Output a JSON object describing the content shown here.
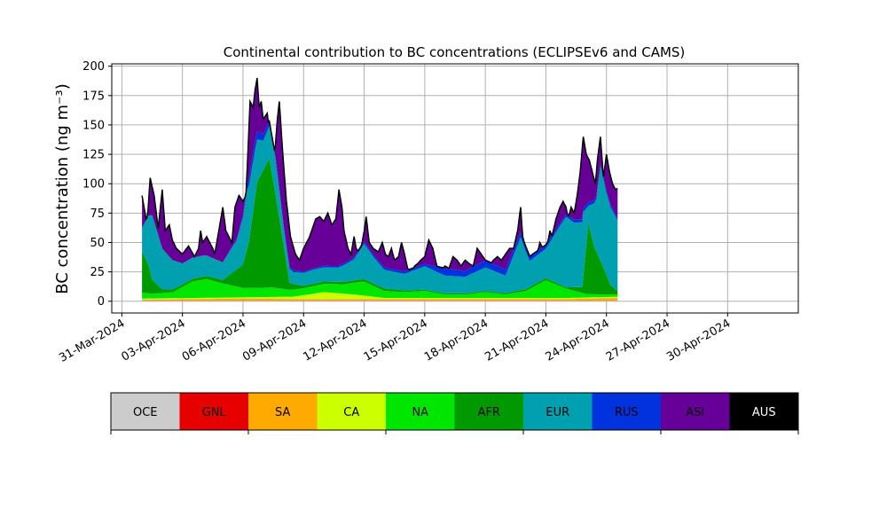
{
  "chart_data": {
    "type": "area",
    "stacked": true,
    "title": "Continental contribution to BC concentrations (ECLIPSEv6 and CAMS)",
    "ylabel": "BC concentration (ng m⁻³)",
    "xlabel": "",
    "ylim": [
      -10,
      202
    ],
    "yticks": [
      0,
      25,
      50,
      75,
      100,
      125,
      150,
      175,
      200
    ],
    "x_start": "2024-04-01",
    "x_end": "2024-05-01",
    "xlim": [
      "2024-03-30T12:00",
      "2024-05-03T12:00"
    ],
    "xticks": [
      "31-Mar-2024",
      "03-Apr-2024",
      "06-Apr-2024",
      "09-Apr-2024",
      "12-Apr-2024",
      "15-Apr-2024",
      "18-Apr-2024",
      "21-Apr-2024",
      "24-Apr-2024",
      "27-Apr-2024",
      "30-Apr-2024"
    ],
    "grid": true,
    "legend_placement": "bottom colorbar",
    "total_key": [
      [
        0,
        90
      ],
      [
        0.25,
        65
      ],
      [
        0.4,
        105
      ],
      [
        0.6,
        90
      ],
      [
        0.8,
        62
      ],
      [
        1.0,
        95
      ],
      [
        1.15,
        60
      ],
      [
        1.35,
        65
      ],
      [
        1.5,
        52
      ],
      [
        1.7,
        45
      ],
      [
        2.0,
        40
      ],
      [
        2.3,
        47
      ],
      [
        2.6,
        38
      ],
      [
        2.8,
        45
      ],
      [
        2.9,
        60
      ],
      [
        3.0,
        50
      ],
      [
        3.2,
        55
      ],
      [
        3.5,
        45
      ],
      [
        3.6,
        40
      ],
      [
        3.8,
        60
      ],
      [
        4.0,
        80
      ],
      [
        4.15,
        60
      ],
      [
        4.3,
        55
      ],
      [
        4.45,
        50
      ],
      [
        4.6,
        80
      ],
      [
        4.8,
        90
      ],
      [
        5.0,
        85
      ],
      [
        5.15,
        90
      ],
      [
        5.35,
        170
      ],
      [
        5.5,
        165
      ],
      [
        5.6,
        180
      ],
      [
        5.7,
        190
      ],
      [
        5.8,
        165
      ],
      [
        5.9,
        170
      ],
      [
        6.0,
        155
      ],
      [
        6.2,
        160
      ],
      [
        6.4,
        130
      ],
      [
        6.55,
        120
      ],
      [
        6.7,
        155
      ],
      [
        6.8,
        170
      ],
      [
        6.95,
        130
      ],
      [
        7.15,
        85
      ],
      [
        7.35,
        55
      ],
      [
        7.6,
        40
      ],
      [
        7.8,
        35
      ],
      [
        8.0,
        45
      ],
      [
        8.3,
        55
      ],
      [
        8.5,
        65
      ],
      [
        8.6,
        70
      ],
      [
        8.8,
        72
      ],
      [
        9.0,
        68
      ],
      [
        9.2,
        75
      ],
      [
        9.4,
        65
      ],
      [
        9.6,
        70
      ],
      [
        9.75,
        95
      ],
      [
        9.9,
        80
      ],
      [
        10.0,
        60
      ],
      [
        10.2,
        45
      ],
      [
        10.35,
        40
      ],
      [
        10.5,
        55
      ],
      [
        10.6,
        45
      ],
      [
        10.8,
        40
      ],
      [
        11.0,
        60
      ],
      [
        11.1,
        72
      ],
      [
        11.25,
        50
      ],
      [
        11.45,
        45
      ],
      [
        11.7,
        42
      ],
      [
        11.9,
        50
      ],
      [
        12.05,
        40
      ],
      [
        12.2,
        38
      ],
      [
        12.35,
        45
      ],
      [
        12.5,
        35
      ],
      [
        12.7,
        38
      ],
      [
        12.85,
        50
      ],
      [
        13.0,
        40
      ],
      [
        13.15,
        28
      ],
      [
        13.35,
        25
      ],
      [
        13.5,
        30
      ],
      [
        13.65,
        32
      ],
      [
        13.8,
        35
      ],
      [
        14.0,
        38
      ],
      [
        14.2,
        52
      ],
      [
        14.4,
        45
      ],
      [
        14.6,
        30
      ],
      [
        14.8,
        25
      ],
      [
        15.0,
        30
      ],
      [
        15.2,
        28
      ],
      [
        15.4,
        38
      ],
      [
        15.6,
        35
      ],
      [
        15.8,
        30
      ],
      [
        16.0,
        35
      ],
      [
        16.2,
        32
      ],
      [
        16.4,
        30
      ],
      [
        16.6,
        45
      ],
      [
        16.8,
        40
      ],
      [
        17.0,
        35
      ],
      [
        17.2,
        30
      ],
      [
        17.4,
        35
      ],
      [
        17.6,
        38
      ],
      [
        17.8,
        35
      ],
      [
        18.0,
        40
      ],
      [
        18.2,
        45
      ],
      [
        18.4,
        45
      ],
      [
        18.6,
        60
      ],
      [
        18.75,
        80
      ],
      [
        18.85,
        55
      ],
      [
        19.0,
        38
      ],
      [
        19.2,
        38
      ],
      [
        19.4,
        40
      ],
      [
        19.6,
        42
      ],
      [
        19.7,
        50
      ],
      [
        19.85,
        45
      ],
      [
        20.0,
        42
      ],
      [
        20.2,
        60
      ],
      [
        20.3,
        55
      ],
      [
        20.5,
        70
      ],
      [
        20.6,
        75
      ],
      [
        20.7,
        80
      ],
      [
        20.85,
        85
      ],
      [
        21.0,
        80
      ],
      [
        21.1,
        70
      ],
      [
        21.25,
        80
      ],
      [
        21.4,
        75
      ],
      [
        21.55,
        90
      ],
      [
        21.7,
        110
      ],
      [
        21.85,
        140
      ],
      [
        22.0,
        125
      ],
      [
        22.15,
        120
      ],
      [
        22.3,
        110
      ],
      [
        22.45,
        100
      ],
      [
        22.55,
        120
      ],
      [
        22.7,
        140
      ],
      [
        22.85,
        105
      ],
      [
        23.0,
        125
      ],
      [
        23.15,
        110
      ],
      [
        23.3,
        100
      ],
      [
        23.45,
        95
      ],
      [
        23.55,
        96
      ]
    ],
    "series": [
      {
        "name": "OCE",
        "color": "#cccccc",
        "key": [
          [
            0,
            0.5
          ],
          [
            23.55,
            0.5
          ]
        ]
      },
      {
        "name": "GNL",
        "color": "#e60000",
        "key": [
          [
            0,
            0.3
          ],
          [
            23.55,
            0.3
          ]
        ]
      },
      {
        "name": "SA",
        "color": "#ffaa00",
        "key": [
          [
            0,
            0.5
          ],
          [
            5,
            1.5
          ],
          [
            8,
            1
          ],
          [
            12,
            1
          ],
          [
            18,
            1
          ],
          [
            21,
            1
          ],
          [
            23.55,
            2
          ]
        ]
      },
      {
        "name": "CA",
        "color": "#ccff00",
        "key": [
          [
            0,
            1
          ],
          [
            5,
            1
          ],
          [
            7.5,
            2
          ],
          [
            9,
            6
          ],
          [
            10.5,
            4
          ],
          [
            12,
            1
          ],
          [
            23.55,
            1
          ]
        ]
      },
      {
        "name": "NA",
        "color": "#00e600",
        "key": [
          [
            0,
            5
          ],
          [
            0.5,
            4
          ],
          [
            1.5,
            5
          ],
          [
            2.5,
            14
          ],
          [
            3.2,
            16
          ],
          [
            4,
            12
          ],
          [
            5,
            8
          ],
          [
            6.5,
            8
          ],
          [
            7.3,
            6
          ],
          [
            8,
            6
          ],
          [
            9,
            7
          ],
          [
            10,
            8
          ],
          [
            11,
            12
          ],
          [
            12,
            6
          ],
          [
            13,
            5
          ],
          [
            14,
            6
          ],
          [
            15,
            3
          ],
          [
            16,
            3
          ],
          [
            17,
            5
          ],
          [
            18,
            3
          ],
          [
            19,
            6
          ],
          [
            20,
            15
          ],
          [
            21,
            8
          ],
          [
            22,
            3
          ],
          [
            23,
            2
          ],
          [
            23.55,
            2
          ]
        ]
      },
      {
        "name": "AFR",
        "color": "#009900",
        "key": [
          [
            0,
            35
          ],
          [
            0.3,
            25
          ],
          [
            0.5,
            12
          ],
          [
            1,
            3
          ],
          [
            2,
            2
          ],
          [
            4,
            3
          ],
          [
            5,
            20
          ],
          [
            5.3,
            40
          ],
          [
            5.7,
            90
          ],
          [
            6.3,
            110
          ],
          [
            6.8,
            60
          ],
          [
            7.3,
            6
          ],
          [
            8,
            2
          ],
          [
            10,
            2
          ],
          [
            12,
            2
          ],
          [
            14,
            1
          ],
          [
            18,
            1
          ],
          [
            20,
            2
          ],
          [
            21,
            1
          ],
          [
            21.8,
            5
          ],
          [
            22.1,
            60
          ],
          [
            22.4,
            40
          ],
          [
            22.8,
            25
          ],
          [
            23.2,
            8
          ],
          [
            23.55,
            3
          ]
        ]
      },
      {
        "name": "EUR",
        "color": "#00a0b0",
        "key": [
          [
            0,
            20
          ],
          [
            0.5,
            55
          ],
          [
            1,
            35
          ],
          [
            1.5,
            25
          ],
          [
            2,
            18
          ],
          [
            3,
            18
          ],
          [
            4,
            15
          ],
          [
            4.7,
            25
          ],
          [
            5.2,
            50
          ],
          [
            5.6,
            40
          ],
          [
            6,
            25
          ],
          [
            6.6,
            30
          ],
          [
            7,
            15
          ],
          [
            7.5,
            10
          ],
          [
            8.5,
            12
          ],
          [
            9.7,
            12
          ],
          [
            10.5,
            18
          ],
          [
            11,
            30
          ],
          [
            11.5,
            22
          ],
          [
            12,
            16
          ],
          [
            13,
            14
          ],
          [
            14,
            20
          ],
          [
            15,
            15
          ],
          [
            16,
            14
          ],
          [
            17,
            20
          ],
          [
            18,
            15
          ],
          [
            18.75,
            45
          ],
          [
            19.2,
            22
          ],
          [
            20,
            25
          ],
          [
            20.7,
            50
          ],
          [
            21,
            60
          ],
          [
            21.4,
            55
          ],
          [
            21.85,
            55
          ],
          [
            22.1,
            15
          ],
          [
            22.5,
            45
          ],
          [
            22.7,
            80
          ],
          [
            23,
            70
          ],
          [
            23.55,
            60
          ]
        ]
      },
      {
        "name": "RUS",
        "color": "#0033dd",
        "key": [
          [
            0,
            0
          ],
          [
            4,
            0
          ],
          [
            5,
            2
          ],
          [
            5.5,
            8
          ],
          [
            6.5,
            3
          ],
          [
            8,
            1
          ],
          [
            12,
            2
          ],
          [
            14,
            2
          ],
          [
            15,
            6
          ],
          [
            16,
            5
          ],
          [
            17,
            6
          ],
          [
            18,
            5
          ],
          [
            19,
            4
          ],
          [
            20,
            3
          ],
          [
            21,
            2
          ],
          [
            22,
            3
          ],
          [
            23,
            2
          ],
          [
            23.55,
            2
          ]
        ]
      },
      {
        "name": "ASI",
        "color": "#660099",
        "key": []
      },
      {
        "name": "AUS",
        "color": "#000000",
        "key": [
          [
            0,
            0.3
          ],
          [
            23.55,
            0.3
          ]
        ]
      }
    ],
    "colorbar_labels": [
      "OCE",
      "GNL",
      "SA",
      "CA",
      "NA",
      "AFR",
      "EUR",
      "RUS",
      "ASI",
      "AUS"
    ],
    "colorbar_text_colors": [
      "#000000",
      "#000000",
      "#000000",
      "#000000",
      "#000000",
      "#000000",
      "#000000",
      "#000000",
      "#000000",
      "#ffffff"
    ]
  }
}
